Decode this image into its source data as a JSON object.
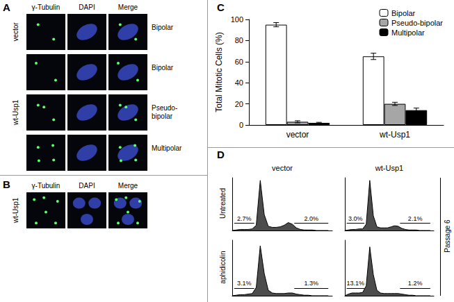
{
  "panels": {
    "labels": [
      "A",
      "B",
      "C",
      "D"
    ]
  },
  "panel_A": {
    "columns": [
      "γ-Tubulin",
      "DAPI",
      "Merge"
    ],
    "rows": [
      {
        "group": "vector",
        "phenotype": "Bipolar"
      },
      {
        "group": "wt-Usp1",
        "phenotype": "Bipolar"
      },
      {
        "group": "wt-Usp1",
        "phenotype": "Pseudo-bipolar"
      },
      {
        "group": "wt-Usp1",
        "phenotype": "Multipolar"
      }
    ]
  },
  "panel_B": {
    "columns": [
      "γ-Tubulin",
      "DAPI",
      "Merge"
    ],
    "row": "wt-Usp1"
  },
  "panel_D": {
    "columns": [
      "vector",
      "wt-Usp1"
    ],
    "rows": [
      "Untreated",
      "aphidicolin"
    ],
    "side_label": "Passage 6"
  },
  "chart_data": [
    {
      "type": "bar",
      "categories": [
        "vector",
        "wt-Usp1"
      ],
      "series": [
        {
          "name": "Bipolar",
          "color": "#ffffff",
          "values": [
            95,
            65
          ],
          "errors": [
            2,
            3
          ]
        },
        {
          "name": "Pseudo-bipolar",
          "color": "#a6a6a6",
          "values": [
            3,
            20
          ],
          "errors": [
            1,
            1.5
          ]
        },
        {
          "name": "Multipolar",
          "color": "#000000",
          "values": [
            2,
            14
          ],
          "errors": [
            0.5,
            2
          ]
        }
      ],
      "ylabel": "Total Mitotic Cells (%)",
      "ylim": [
        0,
        100
      ],
      "yticks": [
        0,
        20,
        40,
        60,
        80,
        100
      ],
      "legend": "upper right",
      "grid": false
    },
    {
      "type": "line",
      "color": "#000000",
      "tick_labels": false,
      "xlim": [
        0,
        100
      ],
      "ylim": [
        0,
        100
      ],
      "x": [
        0,
        4,
        8,
        12,
        16,
        20,
        24,
        28,
        32,
        36,
        40,
        44,
        48,
        52,
        56,
        60,
        64,
        68,
        72,
        76,
        80,
        84,
        88,
        92,
        96
      ],
      "values": [
        0,
        1,
        2,
        2,
        2,
        3,
        10,
        95,
        30,
        8,
        6,
        6,
        7,
        10,
        15,
        12,
        5,
        2,
        1,
        1,
        1,
        0,
        0,
        0,
        0
      ],
      "gates": [
        {
          "range": [
            2,
            22
          ],
          "value": 2.7,
          "label": "2.7%"
        },
        {
          "range": [
            62,
            96
          ],
          "value": 2.0,
          "label": "2.0%"
        }
      ]
    },
    {
      "type": "line",
      "color": "#000000",
      "tick_labels": false,
      "xlim": [
        0,
        100
      ],
      "ylim": [
        0,
        100
      ],
      "x": [
        0,
        4,
        8,
        12,
        16,
        20,
        24,
        28,
        32,
        36,
        40,
        44,
        48,
        52,
        56,
        60,
        64,
        68,
        72,
        76,
        80,
        84,
        88,
        92,
        96
      ],
      "values": [
        0,
        1,
        2,
        2,
        3,
        3,
        12,
        95,
        28,
        7,
        5,
        5,
        5,
        7,
        9,
        8,
        4,
        2,
        1,
        1,
        1,
        0,
        0,
        0,
        0
      ],
      "gates": [
        {
          "range": [
            2,
            22
          ],
          "value": 3.0,
          "label": "3.0%"
        },
        {
          "range": [
            62,
            96
          ],
          "value": 2.1,
          "label": "2.1%"
        }
      ]
    },
    {
      "type": "line",
      "color": "#000000",
      "tick_labels": false,
      "xlim": [
        0,
        100
      ],
      "ylim": [
        0,
        100
      ],
      "x": [
        0,
        4,
        8,
        12,
        16,
        20,
        24,
        28,
        32,
        36,
        40,
        44,
        48,
        52,
        56,
        60,
        64,
        68,
        72,
        76,
        80,
        84,
        88,
        92,
        96
      ],
      "values": [
        0,
        1,
        2,
        2,
        3,
        4,
        15,
        90,
        40,
        10,
        5,
        4,
        4,
        4,
        5,
        5,
        3,
        2,
        1,
        1,
        0,
        0,
        0,
        0,
        0
      ],
      "gates": [
        {
          "range": [
            2,
            22
          ],
          "value": 3.1,
          "label": "3.1%"
        },
        {
          "range": [
            62,
            96
          ],
          "value": 1.3,
          "label": "1.3%"
        }
      ]
    },
    {
      "type": "line",
      "color": "#000000",
      "tick_labels": false,
      "xlim": [
        0,
        100
      ],
      "ylim": [
        0,
        100
      ],
      "x": [
        0,
        4,
        8,
        12,
        16,
        20,
        24,
        28,
        32,
        36,
        40,
        44,
        48,
        52,
        56,
        60,
        64,
        68,
        72,
        76,
        80,
        84,
        88,
        92,
        96
      ],
      "values": [
        0,
        3,
        5,
        5,
        5,
        6,
        18,
        88,
        38,
        10,
        5,
        4,
        4,
        4,
        4,
        4,
        3,
        2,
        1,
        1,
        0,
        0,
        0,
        0,
        0
      ],
      "gates": [
        {
          "range": [
            2,
            22
          ],
          "value": 13.1,
          "label": "13.1%"
        },
        {
          "range": [
            62,
            96
          ],
          "value": 1.2,
          "label": "1.2%"
        }
      ]
    }
  ]
}
